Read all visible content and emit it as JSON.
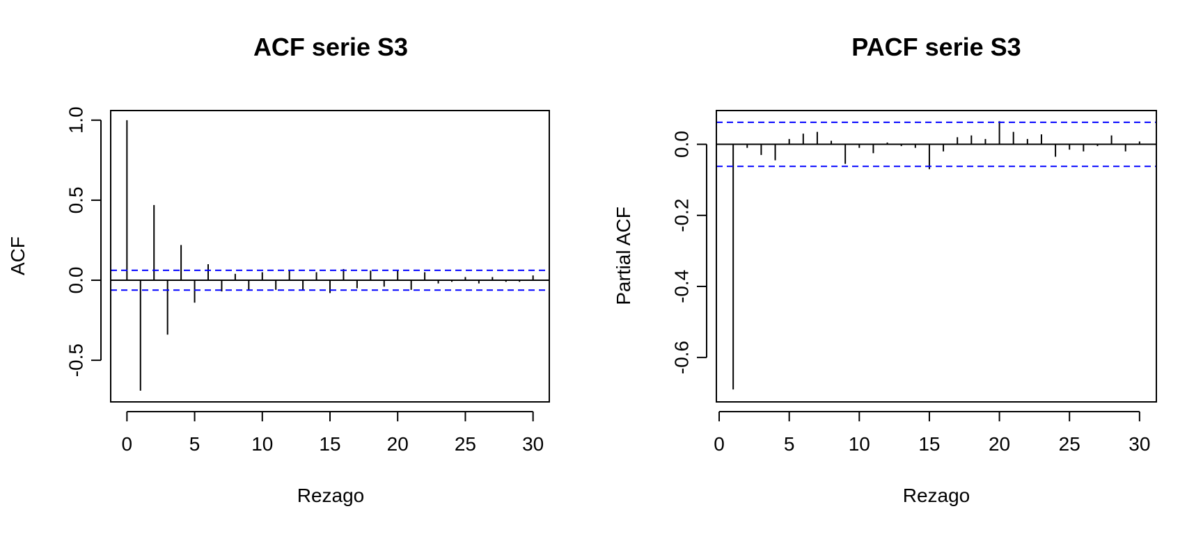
{
  "chart_data": [
    {
      "type": "bar",
      "title": "ACF serie S3",
      "xlabel": "Rezago",
      "ylabel": "ACF",
      "xlim": [
        -1.2,
        31.2
      ],
      "ylim": [
        -0.76,
        1.06
      ],
      "xticks": [
        0,
        5,
        10,
        15,
        20,
        25,
        30
      ],
      "xtick_labels": [
        "0",
        "5",
        "10",
        "15",
        "20",
        "25",
        "30"
      ],
      "yticks": [
        -0.5,
        0.0,
        0.5,
        1.0
      ],
      "ytick_labels": [
        "-0.5",
        "0.0",
        "0.5",
        "1.0"
      ],
      "ci": [
        0.062,
        -0.062
      ],
      "ci_color": "#0000ff",
      "bar_color": "#000000",
      "x": [
        0,
        1,
        2,
        3,
        4,
        5,
        6,
        7,
        8,
        9,
        10,
        11,
        12,
        13,
        14,
        15,
        16,
        17,
        18,
        19,
        20,
        21,
        22,
        23,
        24,
        25,
        26,
        27,
        28,
        29,
        30
      ],
      "values": [
        1.0,
        -0.69,
        0.47,
        -0.34,
        0.22,
        -0.14,
        0.1,
        -0.07,
        0.04,
        -0.06,
        0.05,
        -0.06,
        0.06,
        -0.06,
        0.05,
        -0.08,
        0.07,
        -0.05,
        0.06,
        -0.04,
        0.06,
        -0.06,
        0.05,
        -0.02,
        -0.01,
        0.02,
        -0.02,
        0.02,
        -0.01,
        -0.01,
        0.03
      ]
    },
    {
      "type": "bar",
      "title": "PACF serie S3",
      "xlabel": "Rezago",
      "ylabel": "Partial ACF",
      "xlim": [
        -0.2,
        31.2
      ],
      "ylim": [
        -0.725,
        0.095
      ],
      "xticks": [
        0,
        5,
        10,
        15,
        20,
        25,
        30
      ],
      "xtick_labels": [
        "0",
        "5",
        "10",
        "15",
        "20",
        "25",
        "30"
      ],
      "yticks": [
        -0.6,
        -0.4,
        -0.2,
        0.0
      ],
      "ytick_labels": [
        "-0.6",
        "-0.4",
        "-0.2",
        "0.0"
      ],
      "ci": [
        0.062,
        -0.062
      ],
      "ci_color": "#0000ff",
      "bar_color": "#000000",
      "x": [
        1,
        2,
        3,
        4,
        5,
        6,
        7,
        8,
        9,
        10,
        11,
        12,
        13,
        14,
        15,
        16,
        17,
        18,
        19,
        20,
        21,
        22,
        23,
        24,
        25,
        26,
        27,
        28,
        29,
        30
      ],
      "values": [
        -0.69,
        -0.01,
        -0.03,
        -0.045,
        0.015,
        0.03,
        0.035,
        0.01,
        -0.055,
        -0.01,
        -0.025,
        0.005,
        -0.005,
        -0.01,
        -0.07,
        -0.02,
        0.02,
        0.025,
        0.015,
        0.065,
        0.035,
        0.015,
        0.028,
        -0.035,
        -0.015,
        -0.02,
        -0.005,
        0.025,
        -0.02,
        0.008
      ]
    }
  ]
}
